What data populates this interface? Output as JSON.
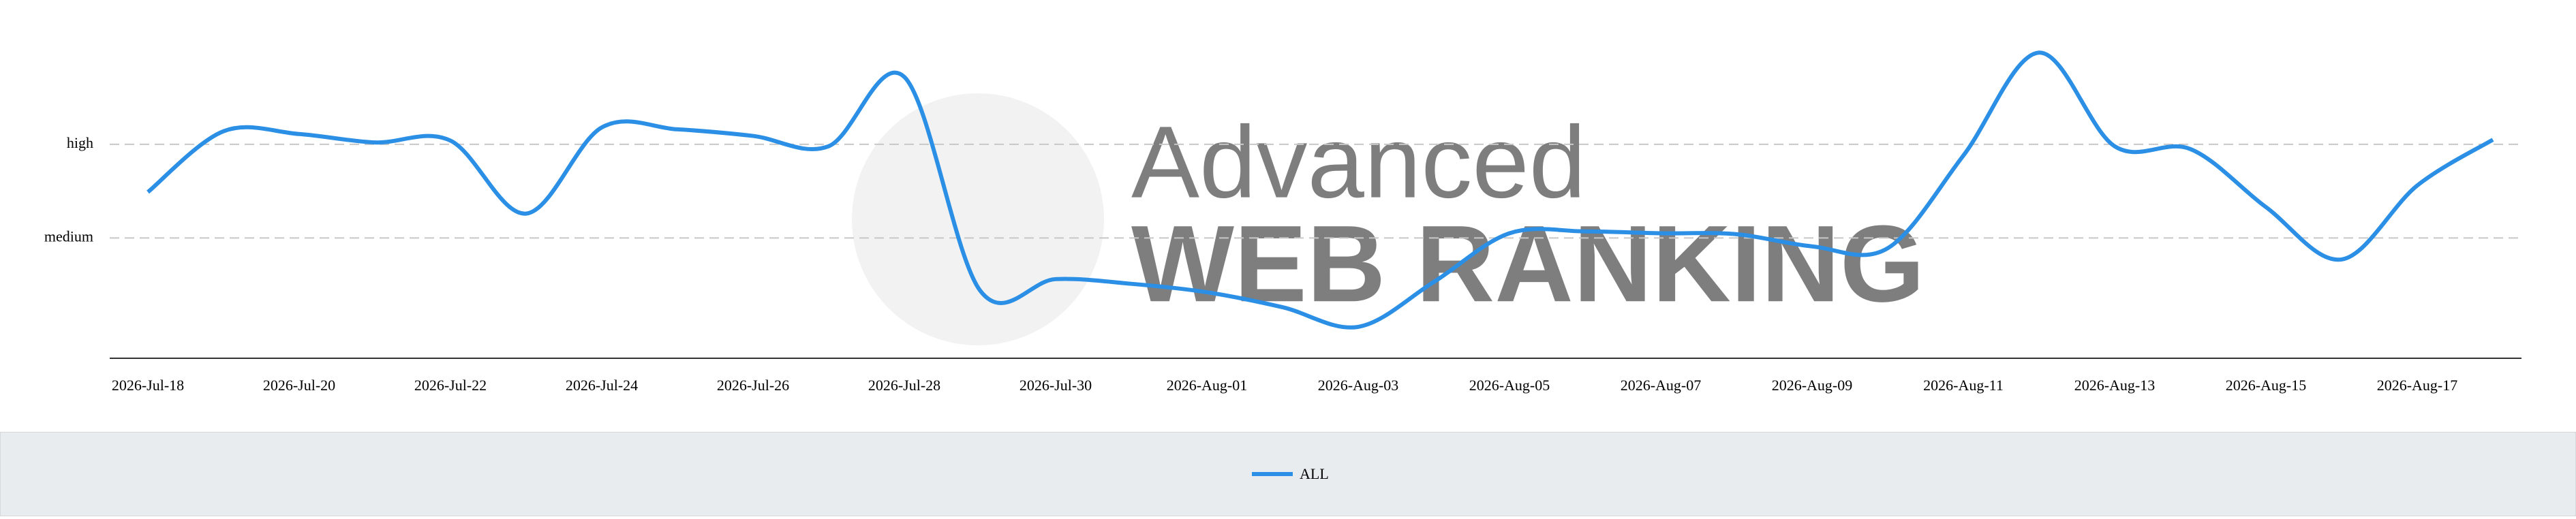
{
  "chart_data": {
    "type": "line",
    "watermark": [
      "Advanced",
      "WEB RANKING"
    ],
    "categories": [
      "2026-Jul-18",
      null,
      "2026-Jul-20",
      null,
      "2026-Jul-22",
      null,
      "2026-Jul-24",
      null,
      "2026-Jul-26",
      null,
      "2026-Jul-28",
      null,
      "2026-Jul-30",
      null,
      "2026-Aug-01",
      null,
      "2026-Aug-03",
      null,
      "2026-Aug-05",
      null,
      "2026-Aug-07",
      null,
      "2026-Aug-09",
      null,
      "2026-Aug-11",
      null,
      "2026-Aug-13",
      null,
      "2026-Aug-15",
      null,
      "2026-Aug-17",
      null
    ],
    "series": [
      {
        "name": "ALL",
        "color": "#2b8fe6",
        "values": [
          1.49,
          2.14,
          2.11,
          2.02,
          2.04,
          1.26,
          2.18,
          2.16,
          2.09,
          1.98,
          2.72,
          0.44,
          0.56,
          0.51,
          0.42,
          0.26,
          0.05,
          0.53,
          1.05,
          1.07,
          1.05,
          1.04,
          0.91,
          0.89,
          1.88,
          2.98,
          1.98,
          1.95,
          1.33,
          0.77,
          1.56,
          2.05
        ]
      }
    ],
    "ylim": [
      -0.3,
      3.2
    ],
    "yticks": [
      {
        "value": 1,
        "label": "medium"
      },
      {
        "value": 2,
        "label": "high"
      }
    ],
    "grid": true,
    "legend": "bottom"
  }
}
